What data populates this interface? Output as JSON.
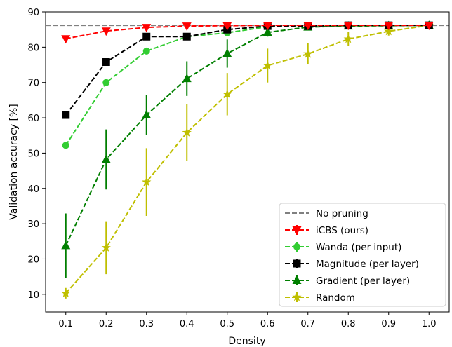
{
  "chart_data": {
    "type": "line",
    "xlabel": "Density",
    "ylabel": "Validation accuracy [%]",
    "xlim": [
      0.05,
      1.05
    ],
    "ylim": [
      5,
      90
    ],
    "x": [
      0.1,
      0.2,
      0.3,
      0.4,
      0.5,
      0.6,
      0.7,
      0.8,
      0.9,
      1.0
    ],
    "xticks": [
      "0.1",
      "0.2",
      "0.3",
      "0.4",
      "0.5",
      "0.6",
      "0.7",
      "0.8",
      "0.9",
      "1.0"
    ],
    "yticks": [
      10,
      20,
      30,
      40,
      50,
      60,
      70,
      80,
      90
    ],
    "reference_line": {
      "name": "No pruning",
      "value": 86.2,
      "color": "#808080",
      "style": "dashed"
    },
    "series": [
      {
        "name": "Random",
        "color": "#bfbf00",
        "marker": "star",
        "values": [
          10.3,
          23.2,
          41.8,
          55.8,
          66.7,
          74.8,
          78.1,
          82.3,
          84.5,
          86.2
        ],
        "errors": [
          1.5,
          7.5,
          9.6,
          8.0,
          6.0,
          4.8,
          3.0,
          2.0,
          1.2,
          0.5
        ]
      },
      {
        "name": "Gradient (per layer)",
        "color": "#007f00",
        "marker": "triangle-up",
        "values": [
          23.8,
          48.2,
          60.8,
          71.1,
          78.2,
          84.2,
          85.7,
          86.0,
          86.1,
          86.2
        ],
        "errors": [
          9.1,
          8.5,
          5.7,
          4.9,
          4.0,
          1.2,
          0.6,
          0.3,
          0.2,
          0.1
        ]
      },
      {
        "name": "Wanda (per input)",
        "color": "#32cd32",
        "marker": "circle",
        "values": [
          52.2,
          70.0,
          78.9,
          83.0,
          84.1,
          85.8,
          86.0,
          86.1,
          86.2,
          86.2
        ],
        "errors": [
          0.5,
          0.5,
          0.5,
          0.4,
          0.3,
          0.2,
          0.2,
          0.1,
          0.1,
          0.1
        ]
      },
      {
        "name": "Magnitude (per layer)",
        "color": "#000000",
        "marker": "square",
        "values": [
          60.8,
          75.8,
          83.0,
          83.0,
          85.0,
          86.0,
          86.0,
          86.2,
          86.2,
          86.2
        ],
        "errors": [
          0.4,
          0.4,
          0.3,
          0.3,
          0.2,
          0.1,
          0.1,
          0.1,
          0.1,
          0.1
        ]
      },
      {
        "name": "iCBS (ours)",
        "color": "#ff0000",
        "marker": "triangle-down",
        "values": [
          82.4,
          84.6,
          85.6,
          86.0,
          86.1,
          86.2,
          86.2,
          86.2,
          86.2,
          86.2
        ],
        "errors": [
          0.3,
          0.2,
          0.2,
          0.1,
          0.1,
          0.1,
          0.1,
          0.1,
          0.1,
          0.1
        ]
      }
    ],
    "legend": {
      "position": "lower-right",
      "order": [
        "No pruning",
        "iCBS (ours)",
        "Wanda (per input)",
        "Magnitude (per layer)",
        "Gradient (per layer)",
        "Random"
      ]
    },
    "grid": false
  }
}
